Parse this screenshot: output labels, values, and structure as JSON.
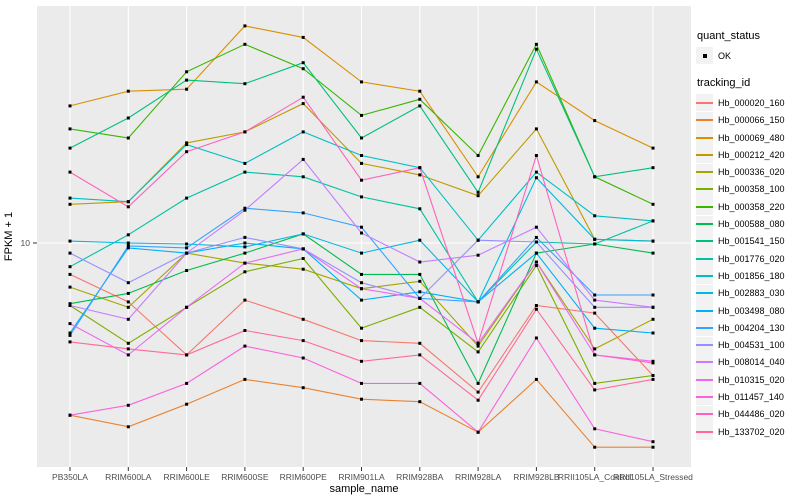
{
  "figure": {
    "x_axis": {
      "title": "sample_name"
    },
    "y_axis": {
      "title": "FPKM + 1",
      "scale": "log10",
      "ticks": [
        {
          "value": 10,
          "label": "10"
        }
      ]
    },
    "legends": {
      "quant": {
        "title": "quant_status",
        "ok_label": "OK",
        "marker": "black-point"
      },
      "tracking": {
        "title": "tracking_id"
      }
    },
    "colors": {
      "panel_bg": "#EBEBEB",
      "grid": "#FFFFFF",
      "legend_key_bg": "#F2F2F2",
      "tick_text": "#4D4D4D",
      "tick_mark": "#333333",
      "point": "#000000"
    }
  },
  "chart_data": {
    "type": "line",
    "title": "",
    "xlabel": "sample_name",
    "ylabel": "FPKM + 1",
    "y_scale": "log10",
    "ylim": [
      0.96,
      119.5
    ],
    "grid": "ggplot-major",
    "legend_position": "right",
    "marker": "small-black-square",
    "x": [
      "PB350LA",
      "RRIM600LA",
      "RRIM600LE",
      "RRIM600SE",
      "RRIM600PE",
      "RRIM901LA",
      "RRIM928BA",
      "RRIM928LA",
      "RRIM928LB",
      "RRII105LA_Control",
      "RRII105LA_Stressed"
    ],
    "series": [
      {
        "name": "Hb_000020_160",
        "color": "#F8766D",
        "values": [
          7.2,
          5.4,
          3.1,
          5.5,
          4.5,
          3.6,
          3.5,
          2.1,
          5.2,
          4.8,
          2.5
        ]
      },
      {
        "name": "Hb_000066_150",
        "color": "#EA8331",
        "values": [
          1.65,
          1.46,
          1.85,
          2.4,
          2.2,
          1.95,
          1.9,
          1.38,
          2.4,
          1.18,
          1.18
        ]
      },
      {
        "name": "Hb_000069_480",
        "color": "#D89000",
        "values": [
          42,
          49,
          50,
          97,
          86,
          54,
          49,
          20,
          54,
          36,
          27
        ]
      },
      {
        "name": "Hb_000212_420",
        "color": "#C09B00",
        "values": [
          15,
          15.4,
          28.5,
          32,
          43,
          23,
          20.4,
          16.4,
          33,
          10.4,
          10.2
        ]
      },
      {
        "name": "Hb_000336_020",
        "color": "#A3A500",
        "values": [
          6.3,
          5.1,
          9.0,
          8.1,
          7.6,
          6.2,
          6.7,
          3.4,
          8.2,
          3.3,
          4.5
        ]
      },
      {
        "name": "Hb_000358_100",
        "color": "#7CAE00",
        "values": [
          5.2,
          3.5,
          5.1,
          7.4,
          8.5,
          4.1,
          5.1,
          3.2,
          7.9,
          2.3,
          2.5
        ]
      },
      {
        "name": "Hb_000358_220",
        "color": "#39B600",
        "values": [
          33,
          30,
          60,
          80,
          62,
          38,
          45,
          25,
          80,
          20,
          15
        ]
      },
      {
        "name": "Hb_000588_080",
        "color": "#00BB4E",
        "values": [
          5.3,
          5.9,
          7.5,
          9.0,
          11.0,
          7.2,
          7.2,
          2.3,
          9.0,
          9.9,
          9.0
        ]
      },
      {
        "name": "Hb_001541_150",
        "color": "#00BF7D",
        "values": [
          27,
          37,
          55,
          53,
          66,
          30,
          42,
          17,
          76,
          20,
          22
        ]
      },
      {
        "name": "Hb_001776_020",
        "color": "#00C1A3",
        "values": [
          7.8,
          10.9,
          16,
          21,
          20,
          16.2,
          14.3,
          5.4,
          10.1,
          9.9,
          12.6
        ]
      },
      {
        "name": "Hb_001856_180",
        "color": "#00BFC4",
        "values": [
          16,
          15.4,
          28,
          23,
          32,
          25,
          22,
          10.3,
          21,
          13.3,
          12.6
        ]
      },
      {
        "name": "Hb_002883_030",
        "color": "#00BAE0",
        "values": [
          10.2,
          10.0,
          9.9,
          9.6,
          11.0,
          9.0,
          10.3,
          5.4,
          19.8,
          10.4,
          10.2
        ]
      },
      {
        "name": "Hb_003498_080",
        "color": "#00B0F6",
        "values": [
          3.9,
          9.5,
          9.0,
          10.0,
          9.4,
          5.5,
          6.0,
          5.4,
          9.0,
          4.1,
          3.9
        ]
      },
      {
        "name": "Hb_004204_130",
        "color": "#35A2FF",
        "values": [
          3.8,
          9.7,
          9.5,
          14.4,
          13.7,
          11.8,
          5.6,
          5.4,
          10.6,
          5.8,
          5.8
        ]
      },
      {
        "name": "Hb_004531_100",
        "color": "#9590FF",
        "values": [
          9.0,
          6.6,
          9.0,
          10.6,
          9.4,
          6.6,
          5.6,
          10.3,
          10.1,
          5.1,
          5.1
        ]
      },
      {
        "name": "Hb_008014_040",
        "color": "#C77CFF",
        "values": [
          5.2,
          4.5,
          9.0,
          14.1,
          24,
          11.1,
          8.2,
          8.8,
          11.8,
          5.5,
          5.1
        ]
      },
      {
        "name": "Hb_010315_020",
        "color": "#E76BF3",
        "values": [
          4.3,
          3.1,
          5.1,
          8.1,
          9.4,
          6.2,
          5.6,
          3.5,
          8.2,
          3.1,
          2.9
        ]
      },
      {
        "name": "Hb_011457_140",
        "color": "#FA62DB",
        "values": [
          1.65,
          1.83,
          2.3,
          3.4,
          3.0,
          2.3,
          2.3,
          1.38,
          3.7,
          1.43,
          1.25
        ]
      },
      {
        "name": "Hb_044486_020",
        "color": "#FF62BC",
        "values": [
          21,
          14.6,
          26,
          32,
          46,
          19.3,
          22,
          3.5,
          25,
          3.1,
          2.85
        ]
      },
      {
        "name": "Hb_133702_020",
        "color": "#FF6A98",
        "values": [
          3.55,
          3.3,
          3.1,
          4.0,
          3.6,
          2.9,
          3.1,
          1.93,
          5.0,
          2.15,
          2.4
        ]
      }
    ]
  }
}
